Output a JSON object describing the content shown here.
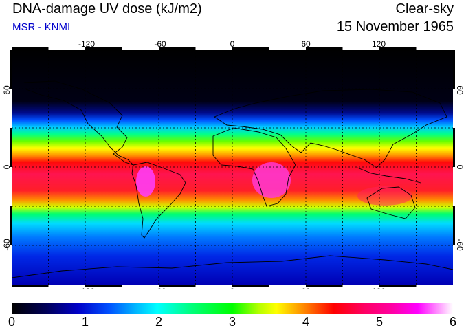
{
  "header": {
    "title": "DNA-damage UV dose (kJ/m2)",
    "source": "MSR - KNMI",
    "condition": "Clear-sky",
    "date": "15 November 1965"
  },
  "map": {
    "projection": "equirectangular",
    "lon_range": [
      -180,
      180
    ],
    "lat_range": [
      -90,
      90
    ],
    "lon_ticks": [
      "-120",
      "-60",
      "0",
      "60",
      "120"
    ],
    "lat_ticks": [
      "60",
      "0",
      "-60"
    ],
    "grid_spacing_deg": 30,
    "gridlines": true,
    "colormap": "uv-dose rainbow (black-blue-cyan-green-yellow-red-magenta-white)",
    "coastlines": true
  },
  "colorbar": {
    "min": 0,
    "max": 6,
    "tick_labels": [
      "0",
      "1",
      "2",
      "3",
      "4",
      "5",
      "6"
    ]
  },
  "colors": {
    "source_text": "#0000cc",
    "coastline": "#000000",
    "background": "#ffffff"
  }
}
